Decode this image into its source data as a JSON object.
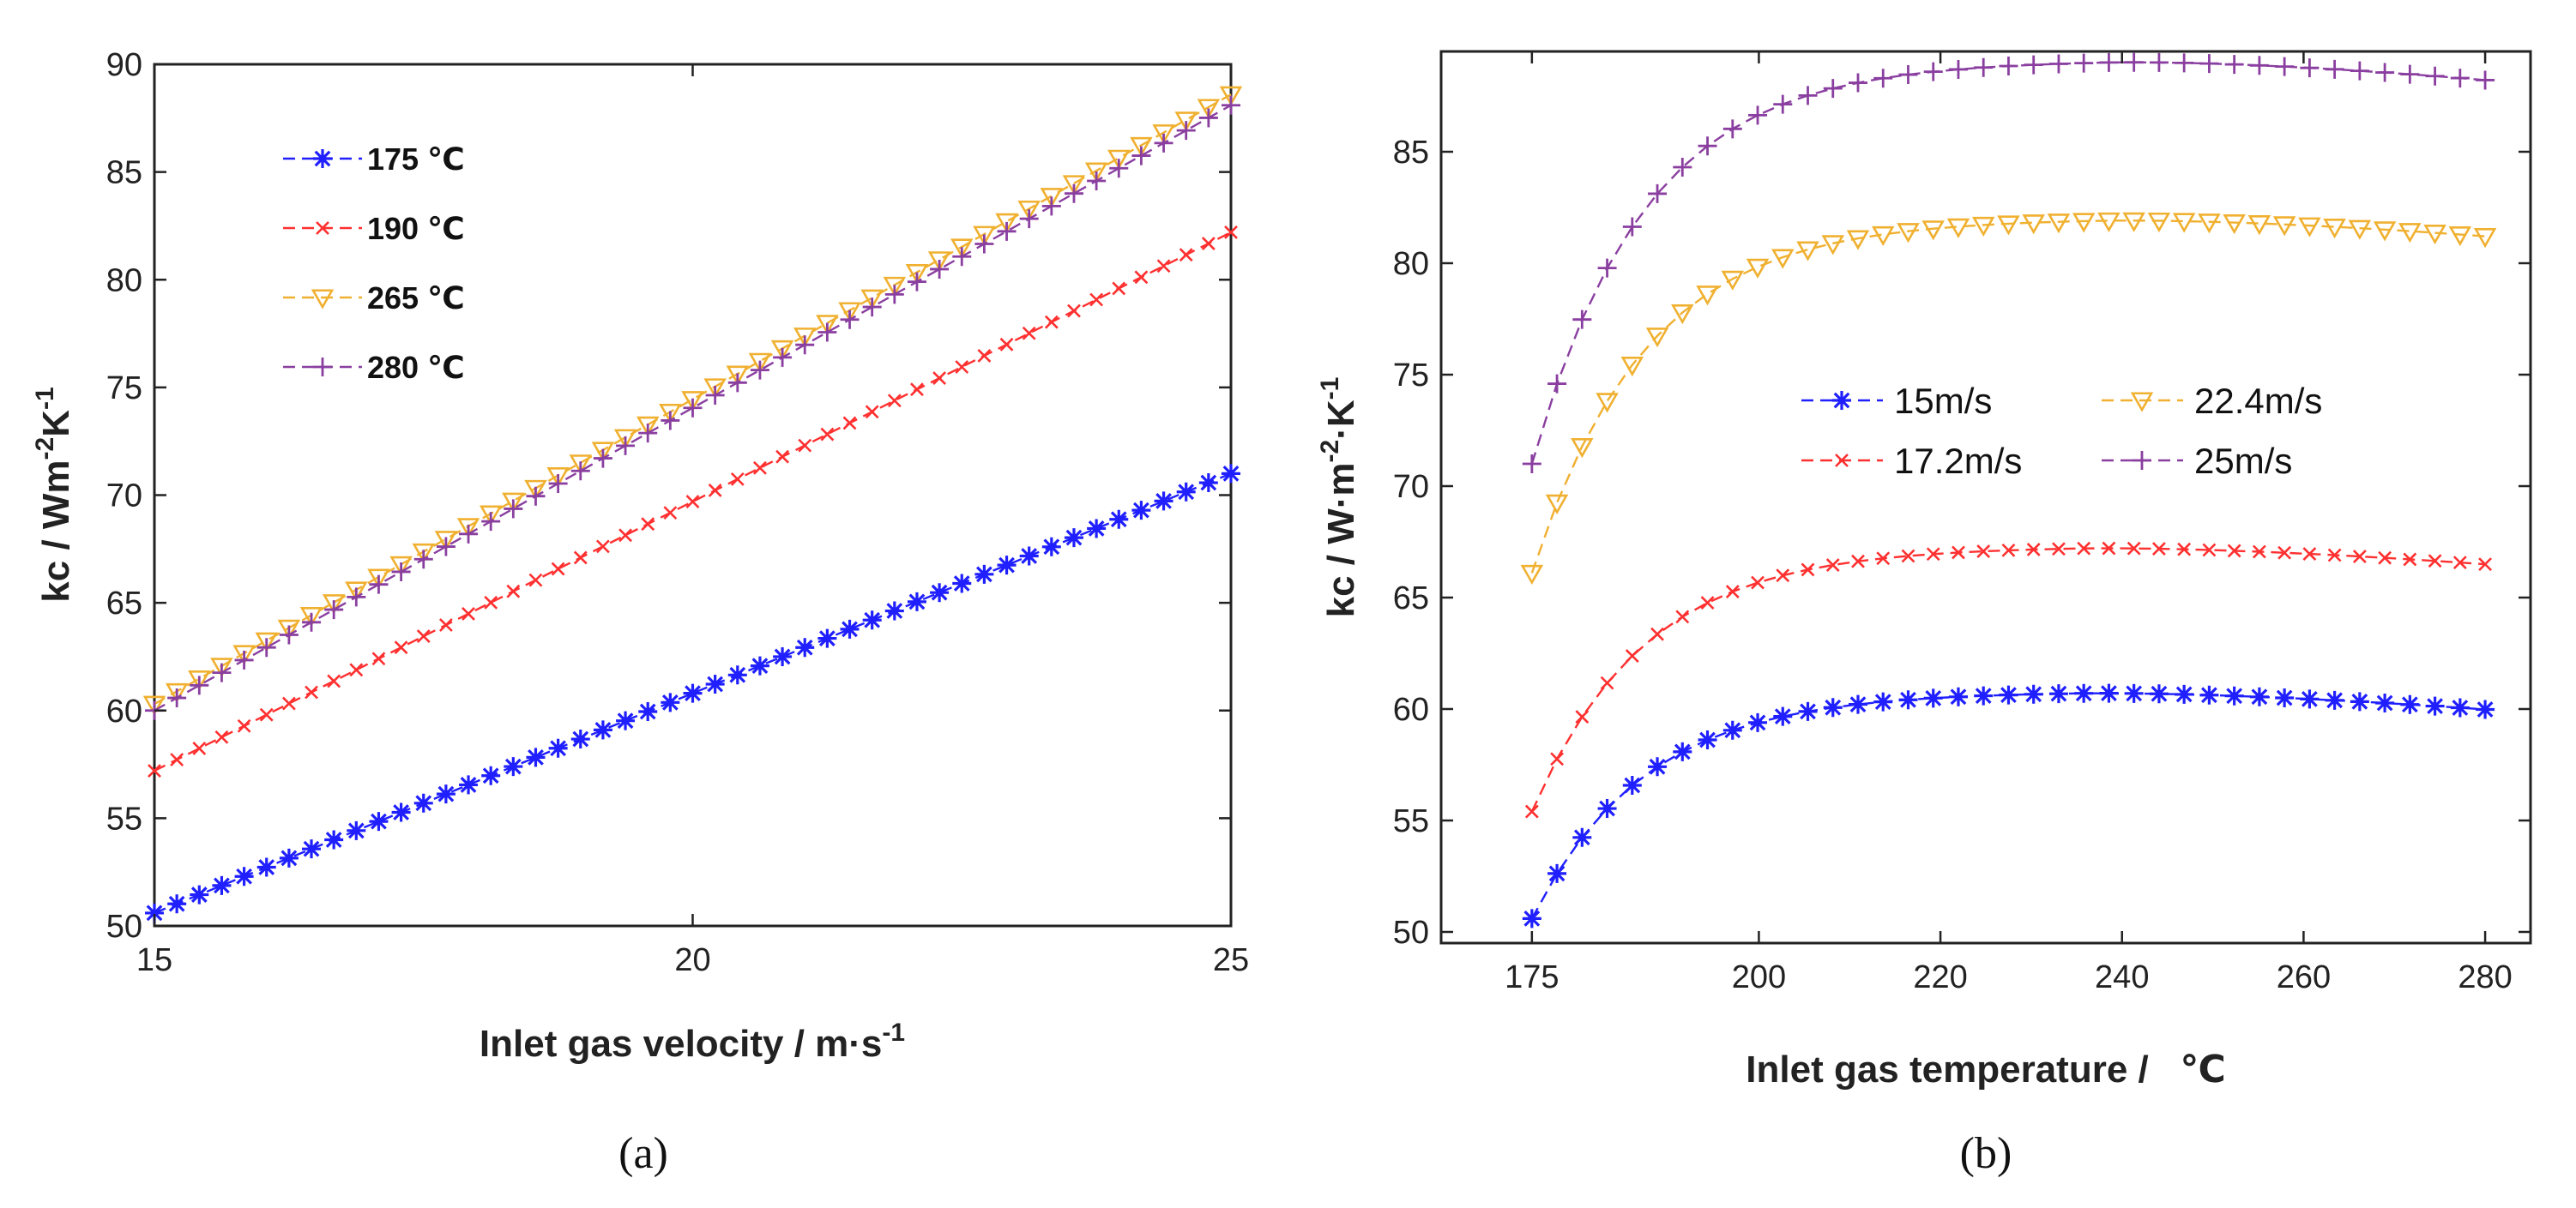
{
  "chart_data": [
    {
      "type": "line",
      "panel_label": "(a)",
      "xlabel": "Inlet gas velocity / m·s",
      "xlabel_sup": "-1",
      "ylabel": "kc / Wm",
      "ylabel_sup1": "-2",
      "ylabel_mid": "K",
      "ylabel_sup2": "-1",
      "xlim": [
        15,
        25
      ],
      "ylim": [
        50,
        90
      ],
      "xticks": [
        15,
        20,
        25
      ],
      "yticks": [
        50,
        55,
        60,
        65,
        70,
        75,
        80,
        85,
        90
      ],
      "grid": false,
      "legend_position": "top-left",
      "series": [
        {
          "name": "175 ℃",
          "color": "#1f1fff",
          "marker": "star",
          "x_range": [
            15,
            25
          ],
          "points": 49,
          "y_start": 50.6,
          "y_end": 71.0
        },
        {
          "name": "190 ℃",
          "color": "#ff3030",
          "marker": "x",
          "x_range": [
            15,
            25
          ],
          "points": 49,
          "y_start": 57.2,
          "y_end": 82.2
        },
        {
          "name": "265 ℃",
          "color": "#f0b030",
          "marker": "triangle-down",
          "x_range": [
            15,
            25
          ],
          "points": 49,
          "y_start": 60.3,
          "y_end": 88.6
        },
        {
          "name": "280 ℃",
          "color": "#8a3fa0",
          "marker": "plus",
          "x_range": [
            15,
            25
          ],
          "points": 49,
          "y_start": 60.0,
          "y_end": 88.1
        }
      ]
    },
    {
      "type": "line",
      "panel_label": "(b)",
      "xlabel": "Inlet gas temperature /   ℃",
      "ylabel": "kc / W·m",
      "ylabel_sup1": "-2",
      "ylabel_mid": "·K",
      "ylabel_sup2": "-1",
      "xlim": [
        165,
        285
      ],
      "ylim": [
        49.5,
        89.5
      ],
      "xticks": [
        175,
        200,
        220,
        240,
        260,
        280
      ],
      "yticks": [
        50,
        55,
        60,
        65,
        70,
        75,
        80,
        85
      ],
      "grid": false,
      "legend_position": "center",
      "series": [
        {
          "name": "15m/s",
          "color": "#1f1fff",
          "marker": "star",
          "x_range": [
            175,
            280
          ],
          "points": 39,
          "y_start": 50.6,
          "y_peak": 60.7,
          "x_peak": 235,
          "y_end": 59.9
        },
        {
          "name": "17.2m/s",
          "color": "#ff3030",
          "marker": "x",
          "x_range": [
            175,
            280
          ],
          "points": 39,
          "y_start": 55.4,
          "y_peak": 67.2,
          "x_peak": 235,
          "y_end": 66.4
        },
        {
          "name": "22.4m/s",
          "color": "#f0b030",
          "marker": "triangle-down",
          "x_range": [
            175,
            280
          ],
          "points": 39,
          "y_start": 66.1,
          "y_peak": 81.9,
          "x_peak": 237,
          "y_end": 81.1
        },
        {
          "name": "25m/s",
          "color": "#8a3fa0",
          "marker": "plus",
          "x_range": [
            175,
            280
          ],
          "points": 39,
          "y_start": 71.0,
          "y_peak": 89.0,
          "x_peak": 238,
          "y_end": 88.1
        }
      ]
    }
  ]
}
